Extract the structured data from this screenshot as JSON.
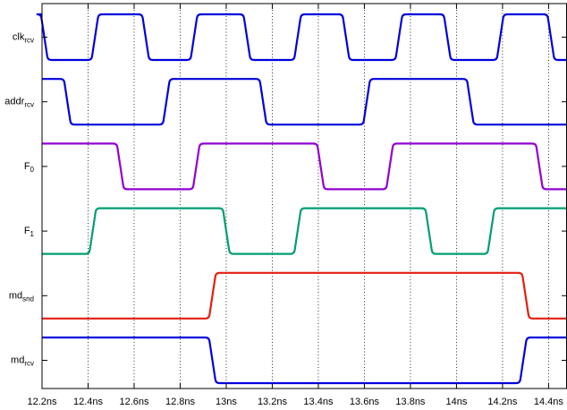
{
  "chart_data": {
    "type": "line",
    "title": "",
    "xlabel": "",
    "ylabel": "",
    "xlim": [
      12.2,
      14.48
    ],
    "x_ticks": [
      12.2,
      12.4,
      12.6,
      12.8,
      13.0,
      13.2,
      13.4,
      13.6,
      13.8,
      14.0,
      14.2,
      14.4
    ],
    "x_tick_labels": [
      "12.2ns",
      "12.4ns",
      "12.6ns",
      "12.8ns",
      "13ns",
      "13.2ns",
      "13.4ns",
      "13.6ns",
      "13.8ns",
      "14ns",
      "14.2ns",
      "14.4ns"
    ],
    "grid": {
      "x": true,
      "y": false,
      "style": "dotted"
    },
    "transition_time_ns": 0.03,
    "series": [
      {
        "name": "clk",
        "sub": "rcv",
        "color": "#0000dd",
        "initial": 1,
        "transitions": [
          [
            12.21,
            0
          ],
          [
            12.43,
            1
          ],
          [
            12.65,
            0
          ],
          [
            12.86,
            1
          ],
          [
            13.09,
            0
          ],
          [
            13.31,
            1
          ],
          [
            13.52,
            0
          ],
          [
            13.75,
            1
          ],
          [
            13.96,
            0
          ],
          [
            14.19,
            1
          ],
          [
            14.41,
            0
          ]
        ]
      },
      {
        "name": "addr",
        "sub": "rcv",
        "color": "#0000dd",
        "initial": 1,
        "transitions": [
          [
            12.31,
            0
          ],
          [
            12.74,
            1
          ],
          [
            13.16,
            0
          ],
          [
            13.61,
            1
          ],
          [
            14.06,
            0
          ]
        ]
      },
      {
        "name": "F",
        "sub": "0",
        "color": "#9400d3",
        "initial": 1,
        "transitions": [
          [
            12.54,
            0
          ],
          [
            12.87,
            1
          ],
          [
            13.41,
            0
          ],
          [
            13.71,
            1
          ],
          [
            14.36,
            0
          ]
        ]
      },
      {
        "name": "F",
        "sub": "1",
        "color": "#009e73",
        "initial": 0,
        "transitions": [
          [
            12.42,
            1
          ],
          [
            13.0,
            0
          ],
          [
            13.31,
            1
          ],
          [
            13.88,
            0
          ],
          [
            14.15,
            1
          ]
        ]
      },
      {
        "name": "md",
        "sub": "snd",
        "color": "#e51e10",
        "initial": 0,
        "transitions": [
          [
            12.94,
            1
          ],
          [
            14.3,
            0
          ]
        ]
      },
      {
        "name": "md",
        "sub": "rcv",
        "color": "#0000dd",
        "initial": 1,
        "transitions": [
          [
            12.94,
            0
          ],
          [
            14.29,
            1
          ]
        ]
      }
    ]
  }
}
